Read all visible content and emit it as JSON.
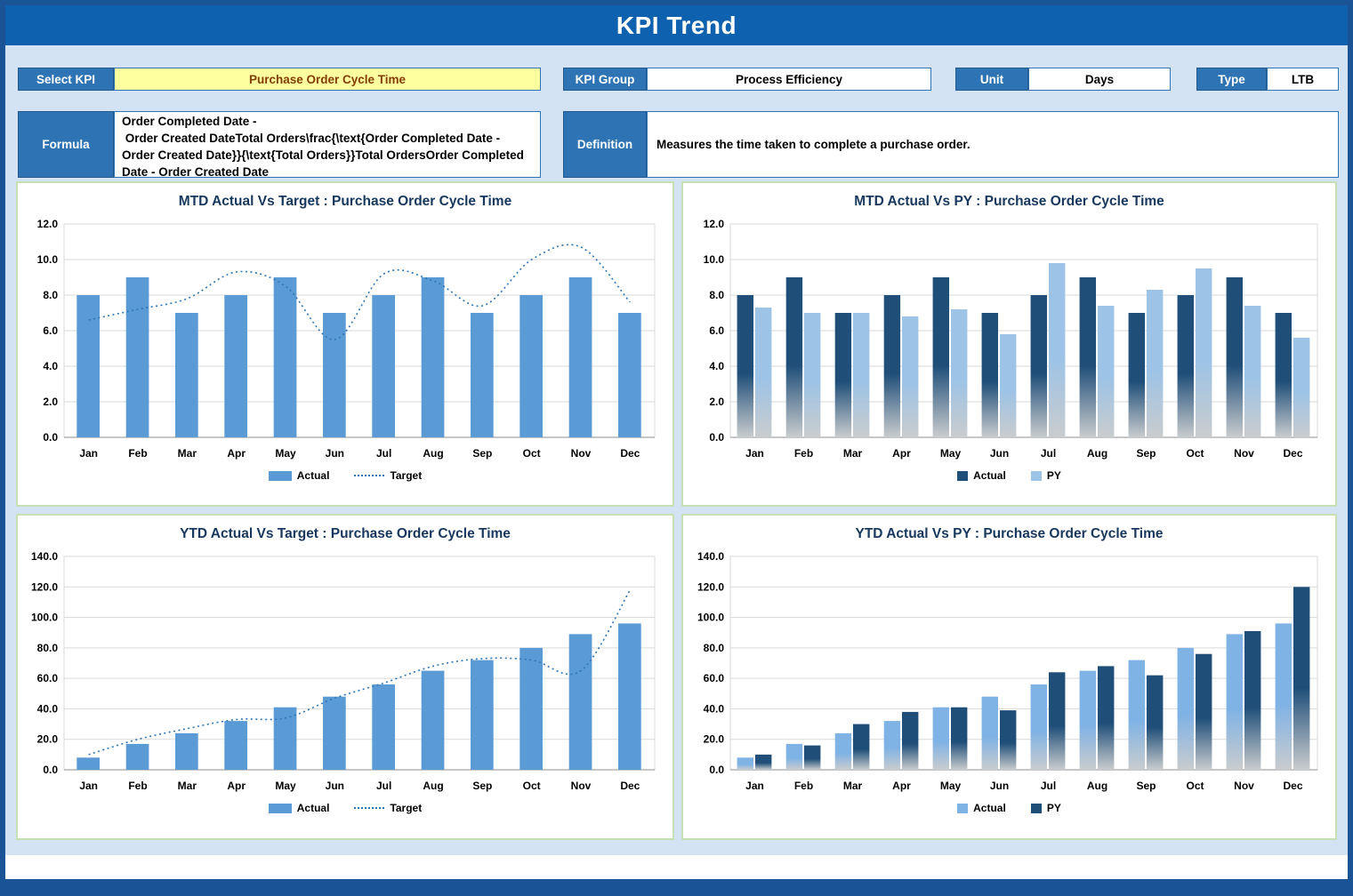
{
  "page": {
    "title": "KPI Trend"
  },
  "controls": {
    "select_kpi": {
      "label": "Select KPI",
      "value": "Purchase Order Cycle Time"
    },
    "kpi_group": {
      "label": "KPI Group",
      "value": "Process Efficiency"
    },
    "unit": {
      "label": "Unit",
      "value": "Days"
    },
    "type": {
      "label": "Type",
      "value": "LTB"
    },
    "formula": {
      "label": "Formula",
      "value": "Order Completed Date -\n Order Created DateTotal Orders\\frac{\\text{Order Completed Date - Order Created Date}}{\\text{Total Orders}}Total OrdersOrder Completed Date - Order Created Date"
    },
    "definition": {
      "label": "Definition",
      "value": "Measures the time taken to complete a purchase order."
    }
  },
  "colors": {
    "frame": "#1A5496",
    "header": "#0E61AE",
    "label_blue": "#2E74B5",
    "kpi_yellow": "#FEFF9E",
    "kpi_text": "#833C00",
    "panel_border": "#C6E0B4",
    "grid": "#D9D9D9",
    "title_navy": "#17375E",
    "bar_light": "#5B9BD5",
    "bar_dark": "#1F4E79",
    "bar_pale": "#9DC3E6",
    "target_line": "#2E75B6"
  },
  "chart_data": [
    {
      "type": "bar",
      "title": "MTD Actual Vs Target : Purchase Order Cycle Time",
      "categories": [
        "Jan",
        "Feb",
        "Mar",
        "Apr",
        "May",
        "Jun",
        "Jul",
        "Aug",
        "Sep",
        "Oct",
        "Nov",
        "Dec"
      ],
      "series": [
        {
          "name": "Actual",
          "type": "bar",
          "color": "#5B9BD5",
          "gradient": false,
          "values": [
            8,
            9,
            7,
            8,
            9,
            7,
            8,
            9,
            7,
            8,
            9,
            7
          ]
        },
        {
          "name": "Target",
          "type": "line",
          "line_style": "dotted",
          "color": "#2E75B6",
          "values": [
            6.6,
            7.2,
            7.8,
            9.3,
            8.5,
            5.5,
            9.2,
            8.8,
            7.4,
            10.0,
            10.7,
            7.6
          ]
        }
      ],
      "ylim": [
        0,
        12
      ],
      "ytick": 2,
      "grid": true,
      "legend_position": "bottom",
      "xlabel": "",
      "ylabel": ""
    },
    {
      "type": "bar",
      "title": "MTD Actual Vs PY : Purchase Order Cycle Time",
      "categories": [
        "Jan",
        "Feb",
        "Mar",
        "Apr",
        "May",
        "Jun",
        "Jul",
        "Aug",
        "Sep",
        "Oct",
        "Nov",
        "Dec"
      ],
      "series": [
        {
          "name": "Actual",
          "type": "bar",
          "color": "#1F4E79",
          "gradient": true,
          "values": [
            8,
            9,
            7,
            8,
            9,
            7,
            8,
            9,
            7,
            8,
            9,
            7
          ]
        },
        {
          "name": "PY",
          "type": "bar",
          "color": "#9DC3E6",
          "gradient": true,
          "values": [
            7.3,
            7.0,
            7.0,
            6.8,
            7.2,
            5.8,
            9.8,
            7.4,
            8.3,
            9.5,
            7.4,
            5.6
          ]
        }
      ],
      "ylim": [
        0,
        12
      ],
      "ytick": 2,
      "grid": true,
      "legend_position": "bottom",
      "xlabel": "",
      "ylabel": ""
    },
    {
      "type": "bar",
      "title": "YTD Actual Vs Target : Purchase Order Cycle Time",
      "categories": [
        "Jan",
        "Feb",
        "Mar",
        "Apr",
        "May",
        "Jun",
        "Jul",
        "Aug",
        "Sep",
        "Oct",
        "Nov",
        "Dec"
      ],
      "series": [
        {
          "name": "Actual",
          "type": "bar",
          "color": "#5B9BD5",
          "gradient": false,
          "values": [
            8,
            17,
            24,
            32,
            41,
            48,
            56,
            65,
            72,
            80,
            89,
            96
          ]
        },
        {
          "name": "Target",
          "type": "line",
          "line_style": "dotted",
          "color": "#2E75B6",
          "values": [
            10,
            20,
            27,
            33,
            34,
            47,
            57,
            68,
            73,
            72,
            65,
            118
          ]
        }
      ],
      "ylim": [
        0,
        140
      ],
      "ytick": 20,
      "grid": true,
      "legend_position": "bottom",
      "xlabel": "",
      "ylabel": ""
    },
    {
      "type": "bar",
      "title": "YTD Actual Vs PY : Purchase Order Cycle Time",
      "categories": [
        "Jan",
        "Feb",
        "Mar",
        "Apr",
        "May",
        "Jun",
        "Jul",
        "Aug",
        "Sep",
        "Oct",
        "Nov",
        "Dec"
      ],
      "series": [
        {
          "name": "Actual",
          "type": "bar",
          "color": "#7FB2E5",
          "gradient": true,
          "values": [
            8,
            17,
            24,
            32,
            41,
            48,
            56,
            65,
            72,
            80,
            89,
            96
          ]
        },
        {
          "name": "PY",
          "type": "bar",
          "color": "#1F4E79",
          "gradient": true,
          "values": [
            10,
            16,
            30,
            38,
            41,
            39,
            64,
            68,
            62,
            76,
            91,
            120
          ]
        }
      ],
      "ylim": [
        0,
        140
      ],
      "ytick": 20,
      "grid": true,
      "legend_position": "bottom",
      "xlabel": "",
      "ylabel": ""
    }
  ]
}
